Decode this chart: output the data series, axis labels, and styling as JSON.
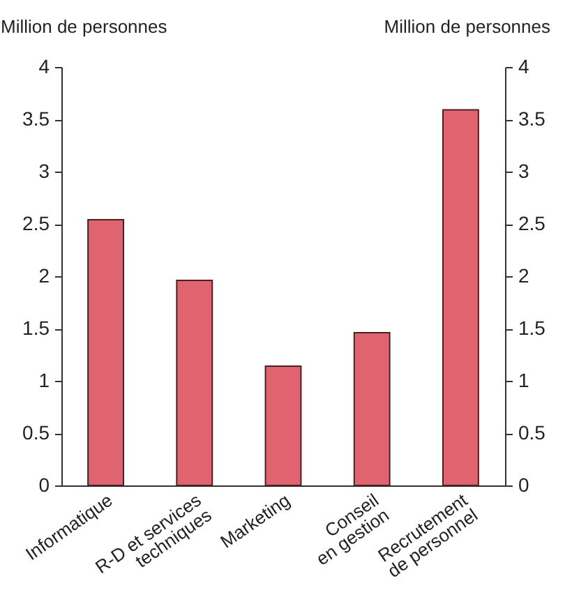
{
  "chart_data": {
    "type": "bar",
    "categories": [
      "Informatique",
      "R-D et services\ntechniques",
      "Marketing",
      "Conseil\nen gestion",
      "Recrutement\nde personnel"
    ],
    "values": [
      2.54,
      1.96,
      1.14,
      1.46,
      3.59
    ],
    "color": "#e06470",
    "ylabel": "Million de personnes",
    "y2label": "Million de personnes",
    "ylim": [
      0,
      4
    ],
    "yticks": [
      0,
      0.5,
      1,
      1.5,
      2,
      2.5,
      3,
      3.5,
      4
    ],
    "y2lim": [
      0,
      4
    ],
    "y2ticks": [
      0,
      0.5,
      1,
      1.5,
      2,
      2.5,
      3,
      3.5,
      4
    ],
    "grid": false
  }
}
